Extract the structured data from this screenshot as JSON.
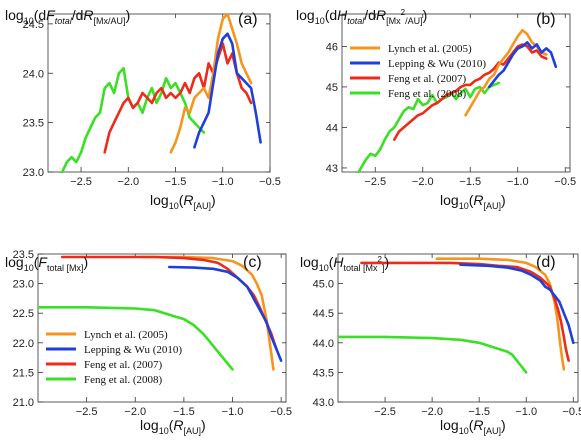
{
  "colors": {
    "lynch": "#f7941d",
    "lepping": "#1f3fdd",
    "feng2007": "#ee2a1b",
    "feng2008": "#39e024"
  },
  "chart_data": [
    {
      "id": "a",
      "type": "line",
      "panel_label": "(a)",
      "ylabel": {
        "pre": "log",
        "pre_sub": "10",
        "d1": "(d",
        "var": "F",
        "var_sub": "total",
        "mid": "/d",
        "var2": "R",
        "unit_sub": "[Mx/AU]",
        "post": ")"
      },
      "xlabel": {
        "pre": "log",
        "pre_sub": "10",
        "open": "(",
        "var": "R",
        "var_sub": "[AU]",
        "close": ")"
      },
      "xlim": [
        -2.85,
        -0.5
      ],
      "ylim": [
        23.0,
        24.6
      ],
      "xticks": [
        -2.5,
        -2.0,
        -1.5,
        -1.0,
        -0.5
      ],
      "xtick_labels": [
        "−2.5",
        "−2.0",
        "−1.5",
        "−1.0",
        "−0.5"
      ],
      "yticks": [
        23.0,
        23.5,
        24.0,
        24.5
      ],
      "ytick_labels": [
        "23.0",
        "23.5",
        "24.0",
        "24.5"
      ],
      "series": [
        {
          "key": "feng2008",
          "x": [
            -2.8,
            -2.75,
            -2.7,
            -2.65,
            -2.6,
            -2.55,
            -2.5,
            -2.45,
            -2.4,
            -2.35,
            -2.3,
            -2.25,
            -2.2,
            -2.15,
            -2.1,
            -2.05,
            -2.0,
            -1.95,
            -1.9,
            -1.85,
            -1.8,
            -1.75,
            -1.7,
            -1.65,
            -1.6,
            -1.55,
            -1.5,
            -1.45,
            -1.4,
            -1.35,
            -1.3,
            -1.25,
            -1.2
          ],
          "y": [
            22.9,
            22.95,
            23.0,
            23.1,
            23.15,
            23.1,
            23.2,
            23.35,
            23.45,
            23.55,
            23.6,
            23.85,
            23.9,
            23.8,
            24.0,
            24.05,
            23.75,
            23.65,
            23.7,
            23.6,
            23.75,
            23.85,
            23.7,
            23.8,
            23.95,
            23.85,
            23.9,
            23.8,
            23.7,
            23.55,
            23.5,
            23.45,
            23.4
          ]
        },
        {
          "key": "feng2007",
          "x": [
            -2.25,
            -2.2,
            -2.15,
            -2.1,
            -2.05,
            -2.0,
            -1.95,
            -1.9,
            -1.85,
            -1.8,
            -1.75,
            -1.7,
            -1.65,
            -1.6,
            -1.55,
            -1.5,
            -1.45,
            -1.4,
            -1.35,
            -1.3,
            -1.25,
            -1.2,
            -1.15,
            -1.1,
            -1.05,
            -1.0,
            -0.95,
            -0.9,
            -0.85,
            -0.8,
            -0.75,
            -0.7
          ],
          "y": [
            23.2,
            23.4,
            23.5,
            23.6,
            23.7,
            23.75,
            23.65,
            23.7,
            23.8,
            23.75,
            23.7,
            23.8,
            23.85,
            23.75,
            23.8,
            23.75,
            23.8,
            23.9,
            23.8,
            23.95,
            24.0,
            23.85,
            24.1,
            24.0,
            24.15,
            24.3,
            24.1,
            24.2,
            24.0,
            23.85,
            23.8,
            23.7
          ]
        },
        {
          "key": "lynch",
          "x": [
            -1.55,
            -1.5,
            -1.45,
            -1.4,
            -1.35,
            -1.3,
            -1.25,
            -1.2,
            -1.15,
            -1.1,
            -1.05,
            -1.0,
            -0.95,
            -0.9,
            -0.85,
            -0.8,
            -0.75,
            -0.7
          ],
          "y": [
            23.2,
            23.3,
            23.45,
            23.65,
            23.6,
            23.75,
            23.8,
            23.85,
            23.75,
            24.0,
            24.35,
            24.55,
            24.6,
            24.45,
            24.3,
            24.1,
            24.0,
            23.9
          ]
        },
        {
          "key": "lepping",
          "x": [
            -1.3,
            -1.25,
            -1.2,
            -1.15,
            -1.1,
            -1.05,
            -1.0,
            -0.95,
            -0.9,
            -0.85,
            -0.8,
            -0.75,
            -0.7,
            -0.65,
            -0.6
          ],
          "y": [
            23.25,
            23.4,
            23.5,
            23.6,
            23.9,
            24.2,
            24.35,
            24.4,
            24.3,
            24.0,
            23.95,
            23.9,
            23.85,
            23.6,
            23.3
          ]
        }
      ]
    },
    {
      "id": "b",
      "type": "line",
      "panel_label": "(b)",
      "ylabel": {
        "pre": "log",
        "pre_sub": "10",
        "d1": "(d",
        "var": "H",
        "var_sub": "total",
        "mid": "/d",
        "var2": "R",
        "unit_sub_a": "[Mx",
        "unit_sup": "2",
        "unit_sub_b": "/AU]",
        "post": ")"
      },
      "xlabel": {
        "pre": "log",
        "pre_sub": "10",
        "open": "(",
        "var": "R",
        "var_sub": "[AU]",
        "close": ")"
      },
      "xlim": [
        -2.85,
        -0.45
      ],
      "ylim": [
        42.9,
        46.8
      ],
      "xticks": [
        -2.5,
        -2.0,
        -1.5,
        -1.0,
        -0.5
      ],
      "xtick_labels": [
        "−2.5",
        "−2.0",
        "−1.5",
        "−1.0",
        "−0.5"
      ],
      "yticks": [
        43,
        44,
        45,
        46
      ],
      "ytick_labels": [
        "43",
        "44",
        "45",
        "46"
      ],
      "legend": [
        {
          "key": "lynch",
          "label": "Lynch et al. (2005)"
        },
        {
          "key": "lepping",
          "label": "Lepping & Wu (2010)"
        },
        {
          "key": "feng2007",
          "label": "Feng et al. (2007)"
        },
        {
          "key": "feng2008",
          "label": "Feng et al. (2008)"
        }
      ],
      "legend_position": "top-left",
      "series": [
        {
          "key": "feng2008",
          "x": [
            -2.75,
            -2.7,
            -2.65,
            -2.6,
            -2.55,
            -2.5,
            -2.45,
            -2.4,
            -2.35,
            -2.3,
            -2.25,
            -2.2,
            -2.15,
            -2.1,
            -2.05,
            -2.0,
            -1.95,
            -1.9,
            -1.85,
            -1.8,
            -1.75,
            -1.7,
            -1.65,
            -1.6,
            -1.55,
            -1.5,
            -1.45,
            -1.4,
            -1.35,
            -1.3,
            -1.25,
            -1.2
          ],
          "y": [
            42.6,
            42.8,
            43.0,
            43.2,
            43.35,
            43.3,
            43.45,
            43.7,
            43.9,
            44.0,
            44.2,
            44.4,
            44.5,
            44.45,
            44.7,
            44.55,
            44.6,
            44.8,
            44.6,
            44.7,
            44.75,
            44.85,
            44.7,
            44.85,
            44.95,
            44.75,
            44.95,
            45.0,
            44.85,
            45.0,
            45.05,
            45.1
          ]
        },
        {
          "key": "feng2007",
          "x": [
            -2.3,
            -2.25,
            -2.2,
            -2.15,
            -2.1,
            -2.05,
            -2.0,
            -1.95,
            -1.9,
            -1.85,
            -1.8,
            -1.75,
            -1.7,
            -1.65,
            -1.6,
            -1.55,
            -1.5,
            -1.45,
            -1.4,
            -1.35,
            -1.3,
            -1.25,
            -1.2,
            -1.15,
            -1.1,
            -1.05,
            -1.0,
            -0.95,
            -0.9,
            -0.85,
            -0.8,
            -0.75,
            -0.7
          ],
          "y": [
            43.7,
            43.9,
            44.0,
            44.1,
            44.2,
            44.3,
            44.35,
            44.45,
            44.55,
            44.6,
            44.7,
            44.8,
            44.85,
            44.9,
            45.0,
            45.05,
            45.05,
            45.15,
            45.2,
            45.3,
            45.35,
            45.45,
            45.6,
            45.55,
            45.7,
            45.85,
            46.0,
            46.05,
            46.0,
            45.85,
            45.9,
            45.75,
            45.7
          ]
        },
        {
          "key": "lynch",
          "x": [
            -1.55,
            -1.5,
            -1.45,
            -1.4,
            -1.35,
            -1.3,
            -1.25,
            -1.2,
            -1.15,
            -1.1,
            -1.05,
            -1.0,
            -0.95,
            -0.9,
            -0.85,
            -0.8,
            -0.75,
            -0.7
          ],
          "y": [
            44.3,
            44.5,
            44.7,
            44.9,
            45.0,
            45.2,
            45.3,
            45.55,
            45.7,
            45.85,
            46.05,
            46.25,
            46.4,
            46.3,
            46.1,
            46.0,
            45.85,
            45.8
          ]
        },
        {
          "key": "lepping",
          "x": [
            -1.3,
            -1.25,
            -1.2,
            -1.15,
            -1.1,
            -1.05,
            -1.0,
            -0.95,
            -0.9,
            -0.85,
            -0.8,
            -0.75,
            -0.7,
            -0.65,
            -0.6
          ],
          "y": [
            45.0,
            45.15,
            45.3,
            45.4,
            45.6,
            45.8,
            45.95,
            46.0,
            46.1,
            45.95,
            46.05,
            45.85,
            45.95,
            45.85,
            45.5
          ]
        }
      ]
    },
    {
      "id": "c",
      "type": "line",
      "panel_label": "(c)",
      "ylabel": {
        "pre": "log",
        "pre_sub": "10",
        "open": "(",
        "var": "F",
        "var_sub": "total [Mx]",
        "close": ")"
      },
      "xlabel": {
        "pre": "log",
        "pre_sub": "10",
        "open": "(",
        "var": "R",
        "var_sub": "[AU]",
        "close": ")"
      },
      "xlim": [
        -3.0,
        -0.45
      ],
      "ylim": [
        21.0,
        23.5
      ],
      "xticks": [
        -2.5,
        -2.0,
        -1.5,
        -1.0,
        -0.5
      ],
      "xtick_labels": [
        "−2.5",
        "−2.0",
        "−1.5",
        "−1.0",
        "−0.5"
      ],
      "yticks": [
        21.0,
        21.5,
        22.0,
        22.5,
        23.0,
        23.5
      ],
      "ytick_labels": [
        "21.0",
        "21.5",
        "22.0",
        "22.5",
        "23.0",
        "23.5"
      ],
      "legend": [
        {
          "key": "lynch",
          "label": "Lynch et al. (2005)"
        },
        {
          "key": "lepping",
          "label": "Lepping & Wu (2010)"
        },
        {
          "key": "feng2007",
          "label": "Feng et al. (2007)"
        },
        {
          "key": "feng2008",
          "label": "Feng et al. (2008)"
        }
      ],
      "legend_position": "bottom-left",
      "series": [
        {
          "key": "feng2008",
          "x": [
            -3.0,
            -2.5,
            -2.0,
            -1.8,
            -1.6,
            -1.5,
            -1.4,
            -1.3,
            -1.25,
            -1.2,
            -1.15,
            -1.1,
            -1.05,
            -1.0
          ],
          "y": [
            22.6,
            22.6,
            22.58,
            22.55,
            22.45,
            22.4,
            22.3,
            22.15,
            22.05,
            21.95,
            21.85,
            21.75,
            21.65,
            21.55
          ]
        },
        {
          "key": "lynch",
          "x": [
            -1.95,
            -1.5,
            -1.2,
            -1.0,
            -0.9,
            -0.8,
            -0.75,
            -0.7,
            -0.65,
            -0.6,
            -0.58
          ],
          "y": [
            23.45,
            23.45,
            23.43,
            23.38,
            23.3,
            23.15,
            23.0,
            22.8,
            22.4,
            21.8,
            21.55
          ]
        },
        {
          "key": "feng2007",
          "x": [
            -2.75,
            -2.2,
            -1.8,
            -1.5,
            -1.3,
            -1.15,
            -1.05,
            -0.95,
            -0.85,
            -0.78,
            -0.72,
            -0.68,
            -0.64,
            -0.6,
            -0.57,
            -0.55
          ],
          "y": [
            23.45,
            23.45,
            23.45,
            23.43,
            23.4,
            23.35,
            23.25,
            23.1,
            22.95,
            22.8,
            22.6,
            22.45,
            22.3,
            22.15,
            22.0,
            21.9
          ]
        },
        {
          "key": "lepping",
          "x": [
            -1.65,
            -1.4,
            -1.2,
            -1.05,
            -0.95,
            -0.85,
            -0.8,
            -0.75,
            -0.7,
            -0.65,
            -0.6,
            -0.55,
            -0.5
          ],
          "y": [
            23.28,
            23.27,
            23.25,
            23.2,
            23.1,
            22.95,
            22.8,
            22.65,
            22.5,
            22.35,
            22.1,
            21.9,
            21.7
          ]
        }
      ]
    },
    {
      "id": "d",
      "type": "line",
      "panel_label": "(d)",
      "ylabel": {
        "pre": "log",
        "pre_sub": "10",
        "open": "(",
        "var": "H",
        "var_sub_a": "total [Mx",
        "var_sup": "2",
        "var_sub_b": "]",
        "close": ")"
      },
      "xlabel": {
        "pre": "log",
        "pre_sub": "10",
        "open": "(",
        "var": "R",
        "var_sub": "[AU]",
        "close": ")"
      },
      "xlim": [
        -3.0,
        -0.45
      ],
      "ylim": [
        43.0,
        45.5
      ],
      "xticks": [
        -2.5,
        -2.0,
        -1.5,
        -1.0,
        -0.5
      ],
      "xtick_labels": [
        "−2.5",
        "−2.0",
        "−1.5",
        "−1.0",
        "−0.5"
      ],
      "yticks": [
        43.0,
        43.5,
        44.0,
        44.5,
        45.0
      ],
      "ytick_labels": [
        "43.0",
        "43.5",
        "44.0",
        "44.5",
        "45.0"
      ],
      "series": [
        {
          "key": "feng2008",
          "x": [
            -3.0,
            -2.5,
            -2.0,
            -1.7,
            -1.5,
            -1.4,
            -1.3,
            -1.2,
            -1.15,
            -1.1,
            -1.05,
            -1.0
          ],
          "y": [
            44.1,
            44.1,
            44.08,
            44.05,
            44.0,
            43.95,
            43.9,
            43.85,
            43.8,
            43.7,
            43.6,
            43.5
          ]
        },
        {
          "key": "lynch",
          "x": [
            -1.95,
            -1.5,
            -1.2,
            -1.0,
            -0.9,
            -0.8,
            -0.75,
            -0.7,
            -0.67,
            -0.64,
            -0.62,
            -0.6
          ],
          "y": [
            45.42,
            45.42,
            45.4,
            45.35,
            45.28,
            45.15,
            45.0,
            44.7,
            44.4,
            44.0,
            43.75,
            43.55
          ]
        },
        {
          "key": "feng2007",
          "x": [
            -2.75,
            -2.2,
            -1.8,
            -1.5,
            -1.3,
            -1.1,
            -0.95,
            -0.85,
            -0.75,
            -0.7,
            -0.66,
            -0.63,
            -0.6,
            -0.58,
            -0.55
          ],
          "y": [
            45.35,
            45.35,
            45.35,
            45.33,
            45.3,
            45.28,
            45.2,
            45.1,
            44.95,
            44.75,
            44.55,
            44.35,
            44.1,
            43.9,
            43.7
          ]
        },
        {
          "key": "lepping",
          "x": [
            -1.7,
            -1.4,
            -1.2,
            -1.05,
            -0.95,
            -0.85,
            -0.8,
            -0.75,
            -0.7,
            -0.65,
            -0.6,
            -0.55,
            -0.5
          ],
          "y": [
            45.32,
            45.3,
            45.27,
            45.22,
            45.15,
            45.05,
            44.95,
            44.9,
            44.8,
            44.7,
            44.5,
            44.3,
            44.0
          ]
        }
      ]
    }
  ]
}
